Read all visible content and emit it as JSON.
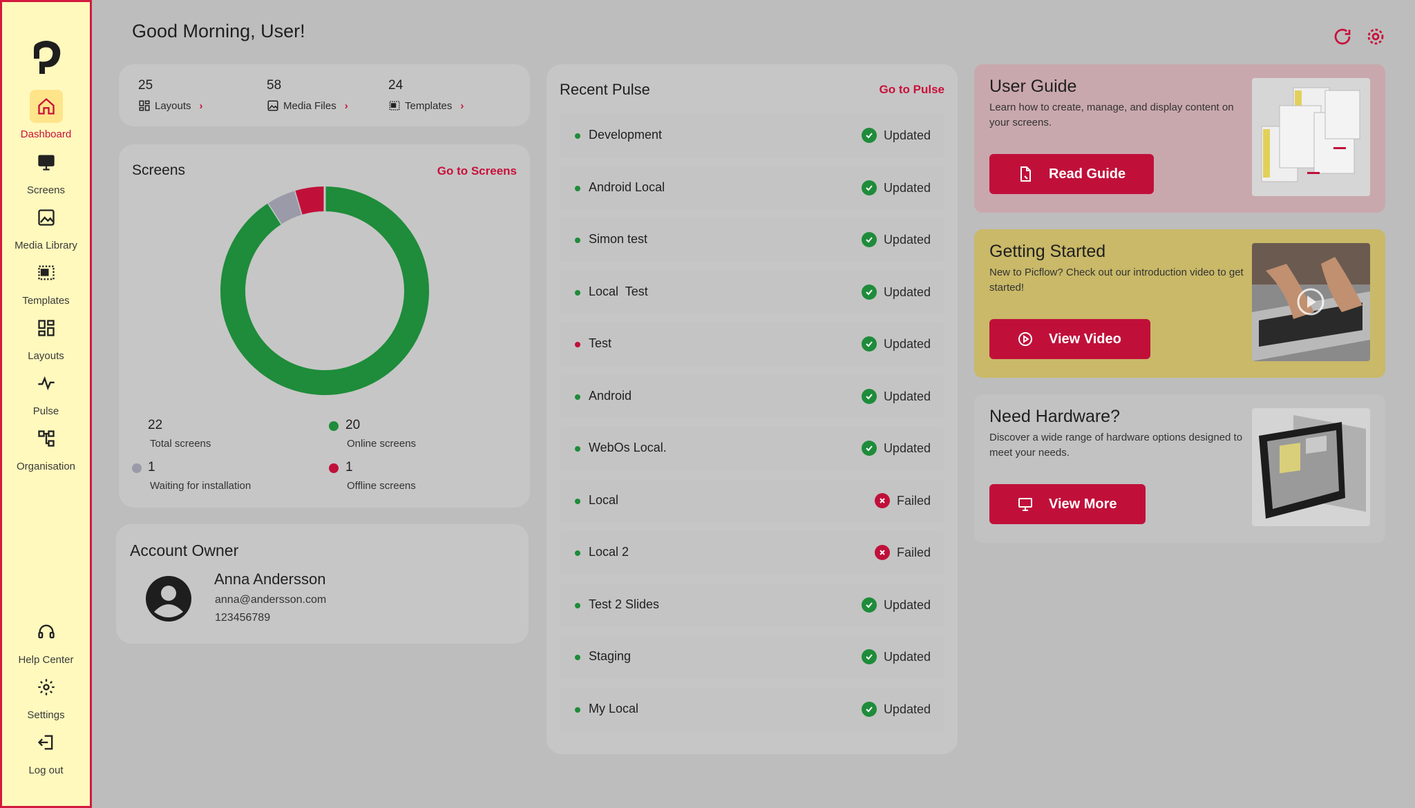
{
  "sidebar": {
    "items": [
      {
        "label": "Dashboard",
        "icon": "home-icon",
        "active": true
      },
      {
        "label": "Screens",
        "icon": "monitor-icon"
      },
      {
        "label": "Media Library",
        "icon": "image-icon"
      },
      {
        "label": "Templates",
        "icon": "template-icon"
      },
      {
        "label": "Layouts",
        "icon": "layout-grid-icon"
      },
      {
        "label": "Pulse",
        "icon": "pulse-icon"
      },
      {
        "label": "Organisation",
        "icon": "organisation-icon"
      }
    ],
    "bottom_items": [
      {
        "label": "Help Center",
        "icon": "headset-icon"
      },
      {
        "label": "Settings",
        "icon": "gear-icon"
      },
      {
        "label": "Log out",
        "icon": "logout-icon"
      }
    ]
  },
  "header": {
    "greeting": "Good Morning, User!"
  },
  "stats": [
    {
      "count": "25",
      "label": "Layouts",
      "icon": "layout-grid-icon"
    },
    {
      "count": "58",
      "label": "Media Files",
      "icon": "image-icon"
    },
    {
      "count": "24",
      "label": "Templates",
      "icon": "template-icon"
    }
  ],
  "screens": {
    "title": "Screens",
    "link": "Go to Screens",
    "total": {
      "count": "22",
      "label": "Total screens"
    },
    "online": {
      "count": "20",
      "label": "Online screens"
    },
    "waiting": {
      "count": "1",
      "label": "Waiting for installation"
    },
    "offline": {
      "count": "1",
      "label": "Offline screens"
    },
    "chart_data": {
      "type": "pie",
      "donut": true,
      "slices": [
        {
          "label": "Online screens",
          "value": 20,
          "color": "#1e8c3a"
        },
        {
          "label": "Waiting for installation",
          "value": 1,
          "color": "#9a9aa8"
        },
        {
          "label": "Offline screens",
          "value": 1,
          "color": "#c0103a"
        }
      ]
    }
  },
  "account": {
    "title": "Account Owner",
    "name": "Anna Andersson",
    "email": "anna@andersson.com",
    "phone": "123456789"
  },
  "pulse": {
    "title": "Recent Pulse",
    "link": "Go to Pulse",
    "rows": [
      {
        "name": "Development",
        "status": "Updated",
        "dot": "#1e8c3a",
        "ok": true
      },
      {
        "name": "Android Local",
        "status": "Updated",
        "dot": "#1e8c3a",
        "ok": true
      },
      {
        "name": "Simon test",
        "status": "Updated",
        "dot": "#1e8c3a",
        "ok": true
      },
      {
        "name": "Local  Test",
        "status": "Updated",
        "dot": "#1e8c3a",
        "ok": true
      },
      {
        "name": "Test",
        "status": "Updated",
        "dot": "#c0103a",
        "ok": true
      },
      {
        "name": "Android",
        "status": "Updated",
        "dot": "#1e8c3a",
        "ok": true
      },
      {
        "name": "WebOs Local.",
        "status": "Updated",
        "dot": "#1e8c3a",
        "ok": true
      },
      {
        "name": "Local",
        "status": "Failed",
        "dot": "#1e8c3a",
        "ok": false
      },
      {
        "name": "Local 2",
        "status": "Failed",
        "dot": "#1e8c3a",
        "ok": false
      },
      {
        "name": "Test 2 Slides",
        "status": "Updated",
        "dot": "#1e8c3a",
        "ok": true
      },
      {
        "name": "Staging",
        "status": "Updated",
        "dot": "#1e8c3a",
        "ok": true
      },
      {
        "name": "My Local",
        "status": "Updated",
        "dot": "#1e8c3a",
        "ok": true
      }
    ]
  },
  "cards": [
    {
      "title": "User Guide",
      "desc": "Learn how to create, manage, and display content on your screens.",
      "button": "Read Guide",
      "bg": "#c9a8ad",
      "icon": "document-icon"
    },
    {
      "title": "Getting Started",
      "desc": "New to Picflow? Check out our introduction video to get started!",
      "button": "View Video",
      "bg": "#c9b968",
      "icon": "play-icon"
    },
    {
      "title": "Need Hardware?",
      "desc": "Discover a wide range of hardware options designed to meet your needs.",
      "button": "View More",
      "bg": "#c2c2c2",
      "icon": "monitor-icon"
    }
  ],
  "colors": {
    "accent": "#c0103a",
    "online": "#1e8c3a",
    "waiting": "#9a9aa8",
    "sidebar_bg": "#fff9bd"
  }
}
